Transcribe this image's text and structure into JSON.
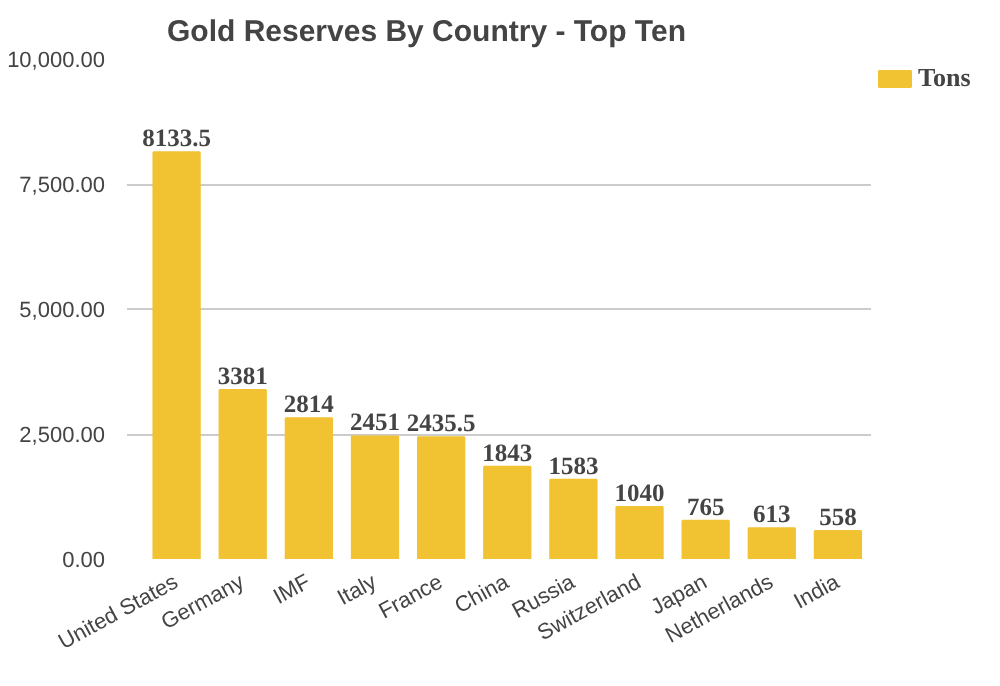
{
  "chart_data": {
    "type": "bar",
    "title": "Gold Reserves By Country - Top Ten",
    "categories": [
      "United States",
      "Germany",
      "IMF",
      "Italy",
      "France",
      "China",
      "Russia",
      "Switzerland",
      "Japan",
      "Netherlands",
      "India"
    ],
    "series": [
      {
        "name": "Tons",
        "color": "#f1c232",
        "values": [
          8133.5,
          3381,
          2814,
          2451,
          2435.5,
          1843,
          1583,
          1040,
          765,
          613,
          558
        ]
      }
    ],
    "ylim": [
      0,
      10000
    ],
    "yticks": [
      {
        "value": 0,
        "label": "0.00"
      },
      {
        "value": 2500,
        "label": "2,500.00"
      },
      {
        "value": 5000,
        "label": "5,000.00"
      },
      {
        "value": 7500,
        "label": "7,500.00"
      },
      {
        "value": 10000,
        "label": "10,000.00"
      }
    ],
    "grid": "y",
    "legend": "top right",
    "data_labels": true
  }
}
